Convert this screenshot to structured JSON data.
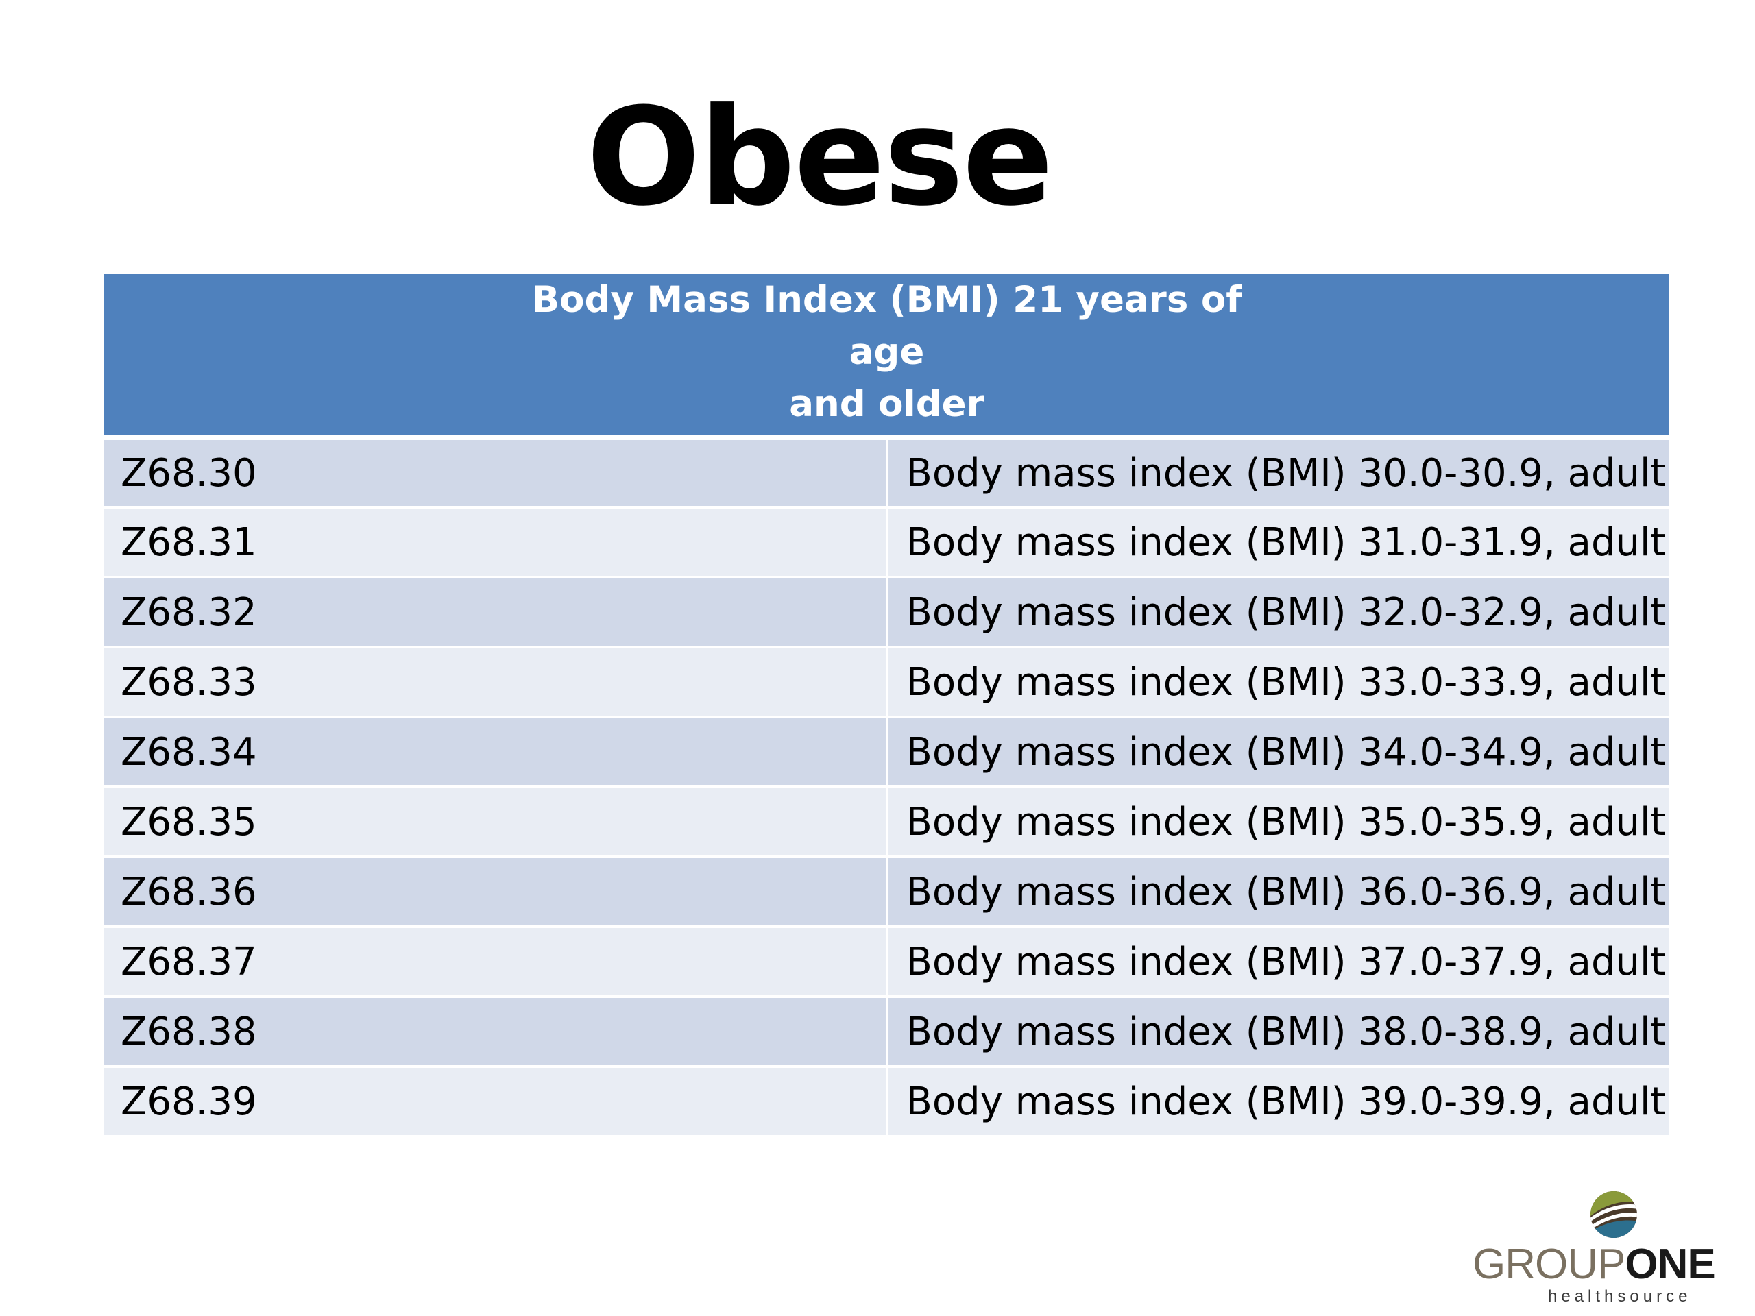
{
  "slide": {
    "title": "Obese"
  },
  "table": {
    "header_line1": "Body Mass Index (BMI) 21 years of age",
    "header_line2": "and older",
    "row_colors": [
      "#d0d8e8",
      "#e9edf4"
    ],
    "header_color": "#4f81bd",
    "rows": [
      {
        "code": "Z68.30",
        "description": "Body mass index (BMI) 30.0-30.9, adult"
      },
      {
        "code": "Z68.31",
        "description": "Body mass index (BMI) 31.0-31.9, adult"
      },
      {
        "code": "Z68.32",
        "description": "Body mass index (BMI) 32.0-32.9, adult"
      },
      {
        "code": "Z68.33",
        "description": "Body mass index (BMI) 33.0-33.9, adult"
      },
      {
        "code": "Z68.34",
        "description": "Body mass index (BMI) 34.0-34.9, adult"
      },
      {
        "code": "Z68.35",
        "description": "Body mass index (BMI) 35.0-35.9, adult"
      },
      {
        "code": "Z68.36",
        "description": "Body mass index (BMI) 36.0-36.9, adult"
      },
      {
        "code": "Z68.37",
        "description": "Body mass index (BMI) 37.0-37.9, adult"
      },
      {
        "code": "Z68.38",
        "description": "Body mass index (BMI) 38.0-38.9, adult"
      },
      {
        "code": "Z68.39",
        "description": "Body mass index (BMI) 39.0-39.9, adult"
      }
    ]
  },
  "logo": {
    "word_part1": "GROUP",
    "word_part2": "ONE",
    "subtitle": "healthsource",
    "icon": "globe-swoosh-icon"
  }
}
